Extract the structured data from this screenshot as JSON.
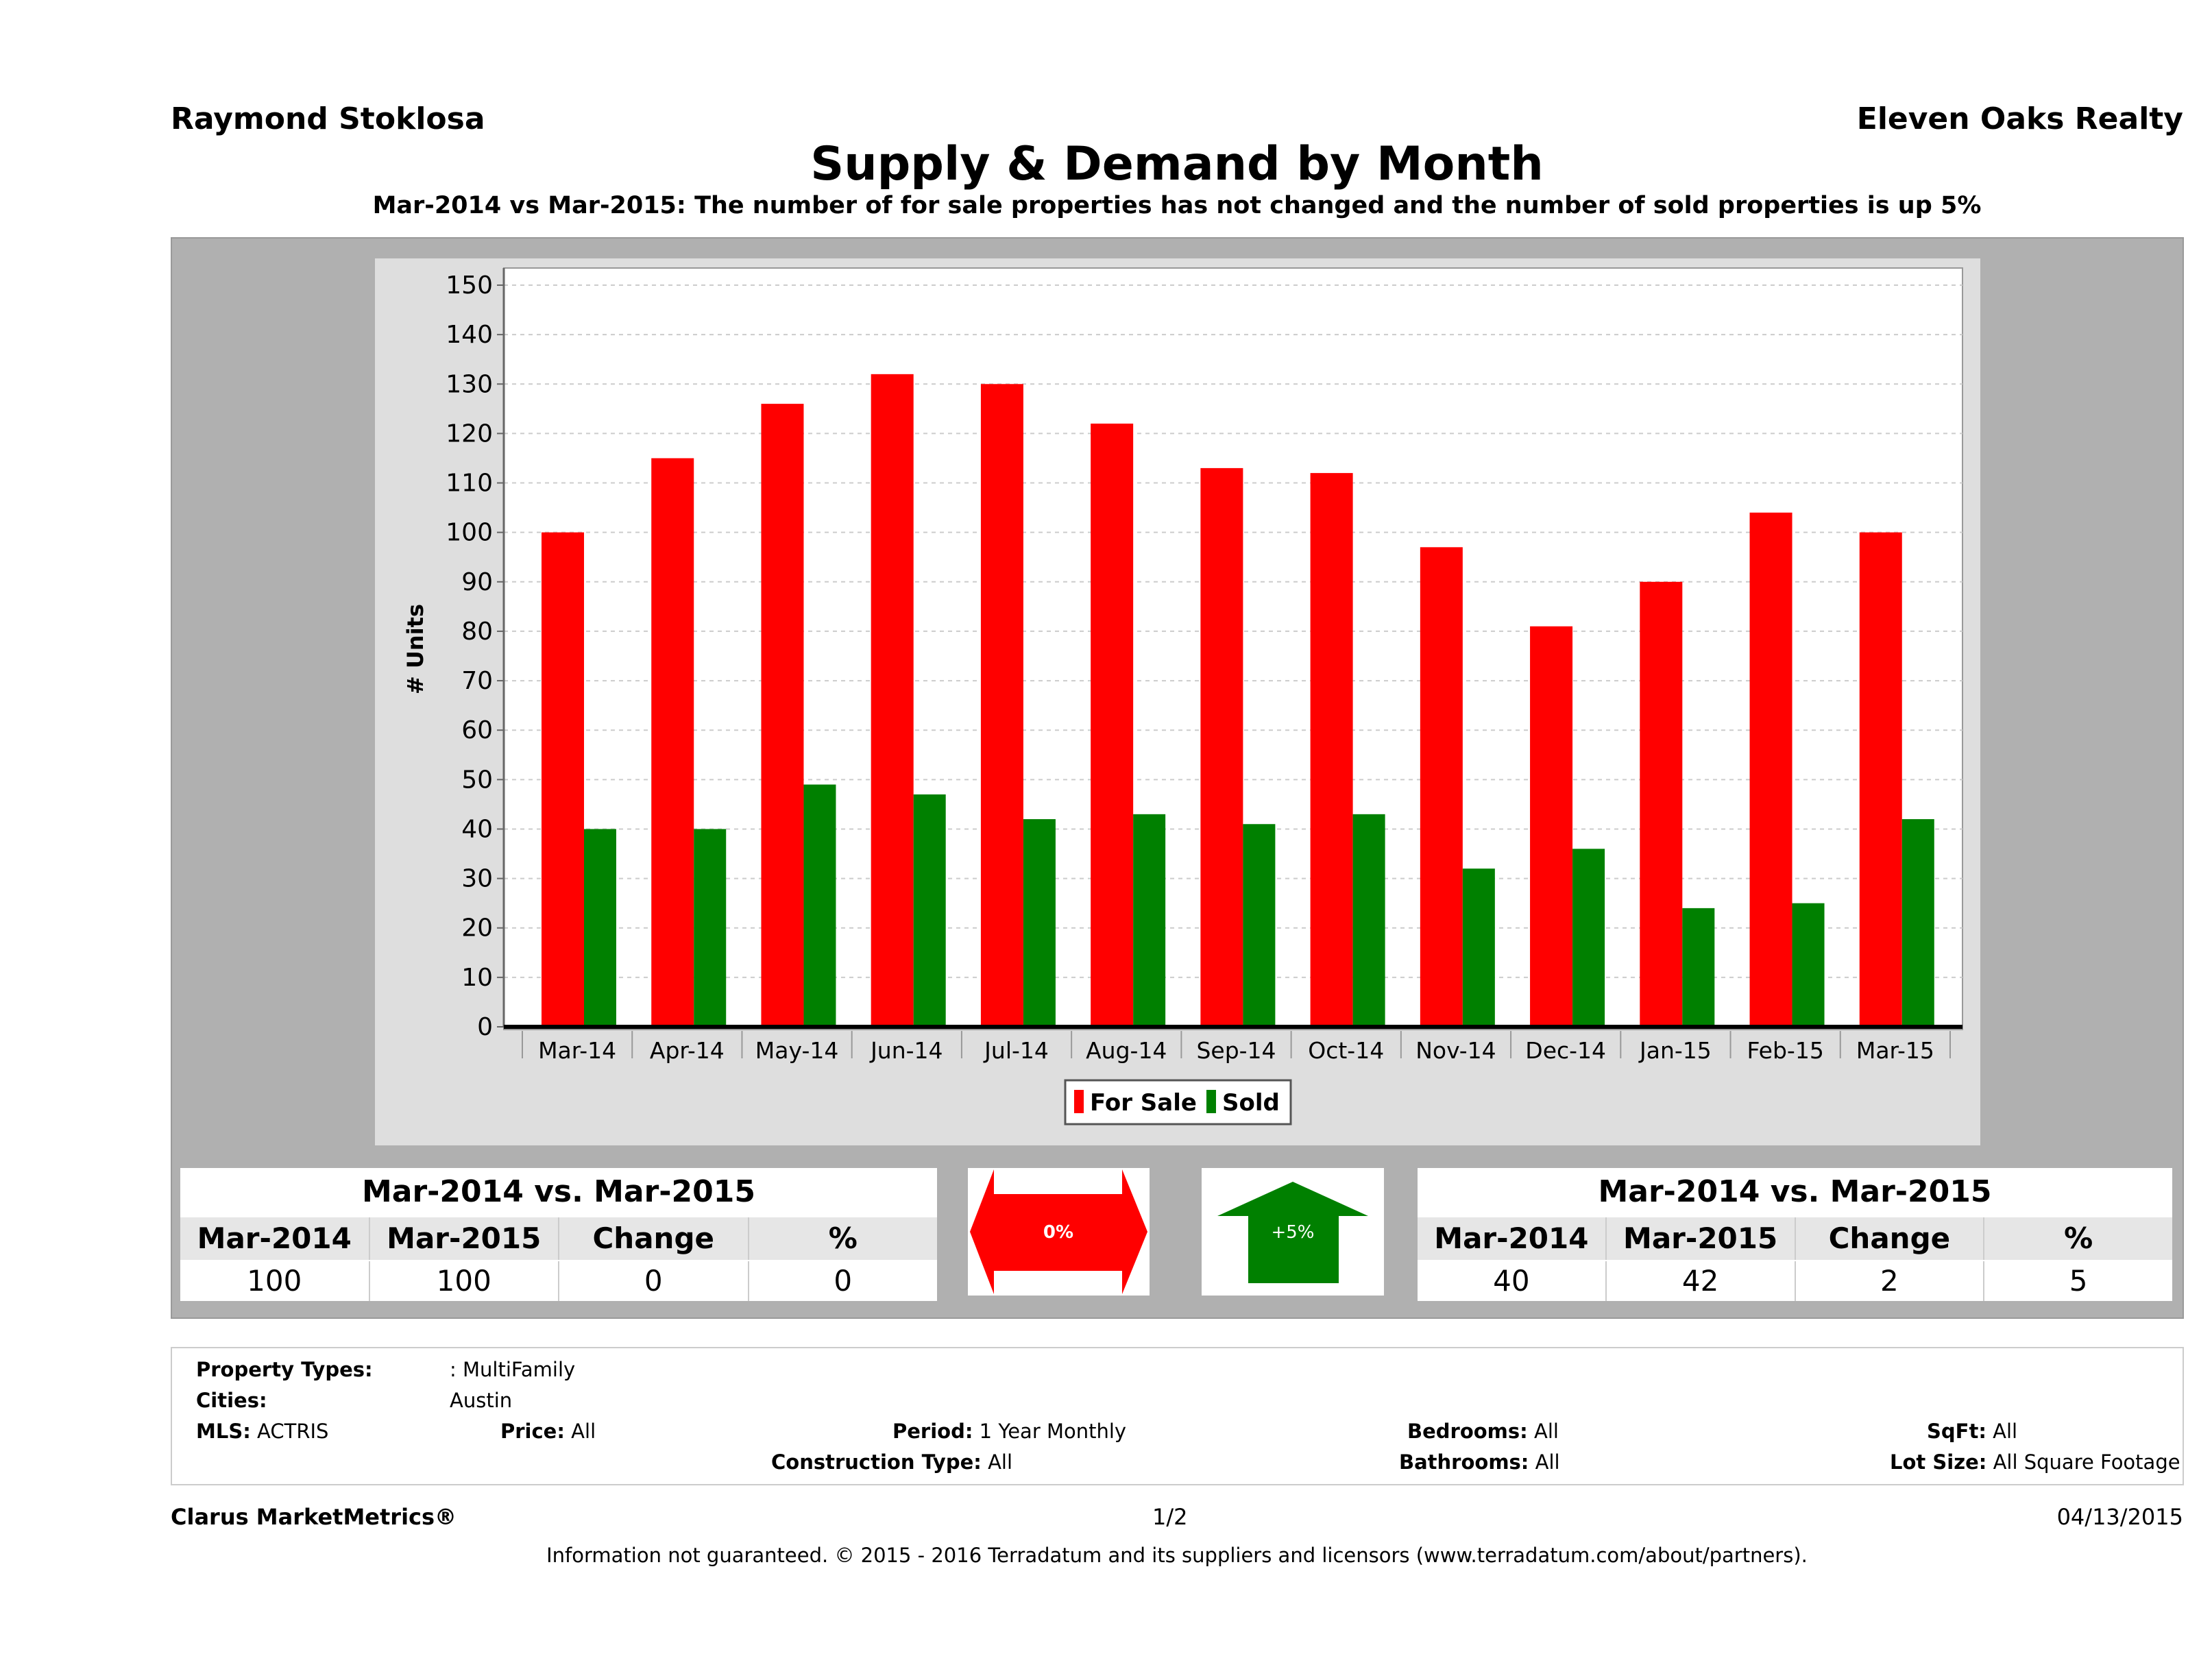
{
  "header": {
    "agent": "Raymond Stoklosa",
    "brokerage": "Eleven Oaks Realty",
    "title": "Supply & Demand by Month",
    "subtitle": "Mar-2014 vs Mar-2015: The number of for sale properties has not changed and the number of sold properties is up 5%"
  },
  "chart_data": {
    "type": "bar",
    "categories": [
      "Mar-14",
      "Apr-14",
      "May-14",
      "Jun-14",
      "Jul-14",
      "Aug-14",
      "Sep-14",
      "Oct-14",
      "Nov-14",
      "Dec-14",
      "Jan-15",
      "Feb-15",
      "Mar-15"
    ],
    "series": [
      {
        "name": "For Sale",
        "color": "#ff0000",
        "values": [
          100,
          115,
          126,
          132,
          130,
          122,
          113,
          112,
          97,
          81,
          90,
          104,
          100
        ]
      },
      {
        "name": "Sold",
        "color": "#008000",
        "values": [
          40,
          40,
          49,
          47,
          42,
          43,
          41,
          43,
          32,
          36,
          24,
          25,
          42
        ]
      }
    ],
    "ylabel": "# Units",
    "xlabel": "",
    "ylim": [
      0,
      150
    ],
    "yticks": [
      "0",
      "10",
      "20",
      "30",
      "40",
      "50",
      "60",
      "70",
      "80",
      "90",
      "100",
      "110",
      "120",
      "130",
      "140",
      "150"
    ],
    "grid": true,
    "legend": "bottom"
  },
  "for_sale_summary": {
    "title": "Mar-2014 vs. Mar-2015",
    "headers": [
      "Mar-2014",
      "Mar-2015",
      "Change",
      "%"
    ],
    "values": [
      "100",
      "100",
      "0",
      "0"
    ],
    "indicator": "0%",
    "indicator_color": "#ff0000"
  },
  "sold_summary": {
    "title": "Mar-2014 vs. Mar-2015",
    "headers": [
      "Mar-2014",
      "Mar-2015",
      "Change",
      "%"
    ],
    "values": [
      "40",
      "42",
      "2",
      "5"
    ],
    "indicator": "+5%",
    "indicator_color": "#008000"
  },
  "criteria": {
    "property_types_label": "Property Types:",
    "property_types": ": MultiFamily",
    "cities_label": "Cities:",
    "cities": "Austin",
    "mls_label": "MLS:",
    "mls": "ACTRIS",
    "price_label": "Price:",
    "price": "All",
    "period_label": "Period:",
    "period": "1 Year Monthly",
    "construction_label": "Construction Type:",
    "construction": "All",
    "bedrooms_label": "Bedrooms:",
    "bedrooms": "All",
    "bathrooms_label": "Bathrooms:",
    "bathrooms": "All",
    "sqft_label": "SqFt:",
    "sqft": "All",
    "lot_label": "Lot Size:",
    "lot": "All Square Footage"
  },
  "footer": {
    "brand": "Clarus MarketMetrics®",
    "page": "1/2",
    "date": "04/13/2015",
    "disclaimer": "Information not guaranteed. © 2015 - 2016 Terradatum and its suppliers and licensors (www.terradatum.com/about/partners)."
  }
}
